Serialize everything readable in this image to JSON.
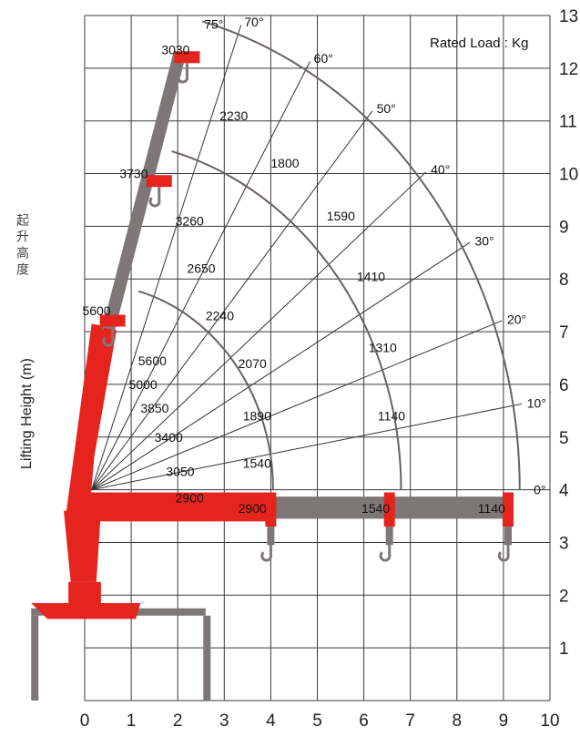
{
  "chart_data": {
    "type": "diagram",
    "xlim": [
      0,
      10
    ],
    "ylim": [
      0,
      13
    ],
    "x_ticks": [
      "0",
      "1",
      "2",
      "3",
      "4",
      "5",
      "6",
      "7",
      "8",
      "9",
      "10"
    ],
    "y_ticks": [
      "1",
      "2",
      "3",
      "4",
      "5",
      "6",
      "7",
      "8",
      "9",
      "10",
      "11",
      "12",
      "13"
    ],
    "ylabel_zh": "起升高度",
    "ylabel_en": "Lifting Height (m)",
    "legend": "Rated Load : Kg",
    "pivot": [
      0.15,
      4.0
    ],
    "arc_radii": [
      3.9,
      6.65,
      9.2
    ],
    "angles": [
      {
        "label": "75°",
        "deg": 75
      },
      {
        "label": "70°",
        "deg": 70
      },
      {
        "label": "60°",
        "deg": 60
      },
      {
        "label": "50°",
        "deg": 50
      },
      {
        "label": "40°",
        "deg": 40
      },
      {
        "label": "30°",
        "deg": 30
      },
      {
        "label": "20°",
        "deg": 20
      },
      {
        "label": "10°",
        "deg": 10
      },
      {
        "label": "0°",
        "deg": 0
      }
    ],
    "loads": [
      {
        "value": "3030",
        "x": 1.65,
        "y": 12.35
      },
      {
        "value": "2230",
        "x": 2.9,
        "y": 11.1
      },
      {
        "value": "1800",
        "x": 4.0,
        "y": 10.2
      },
      {
        "value": "1590",
        "x": 5.2,
        "y": 9.2
      },
      {
        "value": "1410",
        "x": 5.85,
        "y": 8.05
      },
      {
        "value": "1310",
        "x": 6.1,
        "y": 6.7
      },
      {
        "value": "1140",
        "x": 6.3,
        "y": 5.4
      },
      {
        "value": "3730",
        "x": 0.75,
        "y": 10.0
      },
      {
        "value": "3260",
        "x": 1.95,
        "y": 9.1
      },
      {
        "value": "2650",
        "x": 2.2,
        "y": 8.2
      },
      {
        "value": "2240",
        "x": 2.6,
        "y": 7.3
      },
      {
        "value": "2070",
        "x": 3.3,
        "y": 6.4
      },
      {
        "value": "1890",
        "x": 3.4,
        "y": 5.4
      },
      {
        "value": "1540",
        "x": 3.4,
        "y": 4.5
      },
      {
        "value": "5600",
        "x": -0.05,
        "y": 7.4
      },
      {
        "value": "5600",
        "x": 1.15,
        "y": 6.45
      },
      {
        "value": "5000",
        "x": 0.95,
        "y": 6.0
      },
      {
        "value": "3850",
        "x": 1.2,
        "y": 5.55
      },
      {
        "value": "3400",
        "x": 1.5,
        "y": 5.0
      },
      {
        "value": "3050",
        "x": 1.75,
        "y": 4.35
      },
      {
        "value": "2900",
        "x": 1.95,
        "y": 3.85
      },
      {
        "value": "2900",
        "x": 3.3,
        "y": 3.65
      },
      {
        "value": "1540",
        "x": 5.95,
        "y": 3.65
      },
      {
        "value": "1140",
        "x": 8.45,
        "y": 3.65
      }
    ]
  }
}
